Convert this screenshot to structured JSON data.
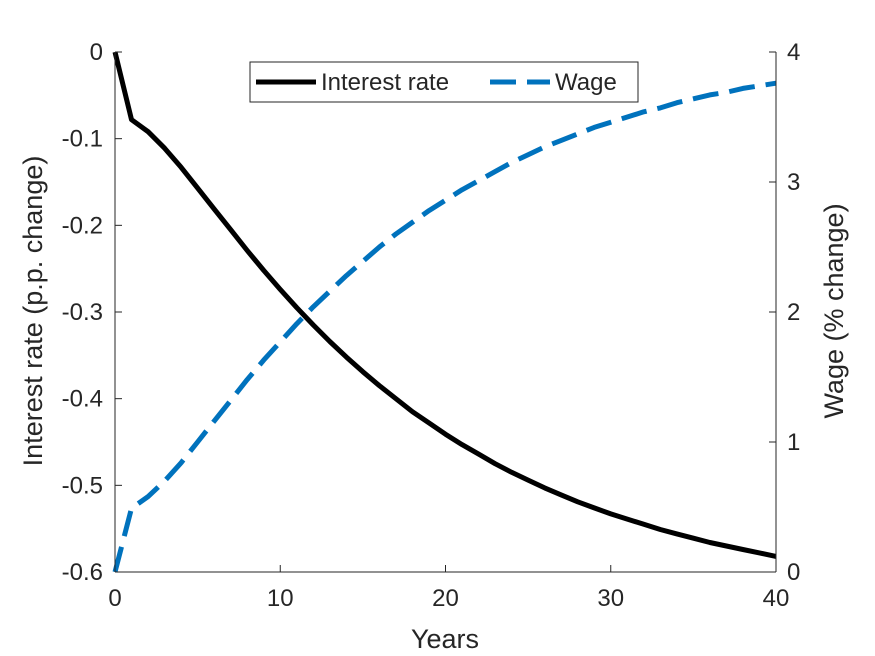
{
  "chart_data": {
    "type": "line",
    "title": "",
    "xlabel": "Years",
    "ylabel_left": "Interest rate (p.p. change)",
    "ylabel_right": "Wage (% change)",
    "xlim": [
      0,
      40
    ],
    "ylim_left": [
      -0.6,
      0
    ],
    "ylim_right": [
      0,
      4
    ],
    "x_ticks": [
      "0",
      "10",
      "20",
      "30",
      "40"
    ],
    "y_left_ticks": [
      "0",
      "-0.1",
      "-0.2",
      "-0.3",
      "-0.4",
      "-0.5",
      "-0.6"
    ],
    "y_right_ticks": [
      "4",
      "3",
      "2",
      "1",
      "0"
    ],
    "grid": false,
    "legend_position": "top-center",
    "series": [
      {
        "name": "Interest rate",
        "axis": "left",
        "color": "#000000",
        "style": "solid",
        "x": [
          0,
          1,
          2,
          3,
          4,
          5,
          6,
          7,
          8,
          9,
          10,
          11,
          12,
          13,
          14,
          15,
          16,
          17,
          18,
          19,
          20,
          21,
          22,
          23,
          24,
          25,
          26,
          27,
          28,
          29,
          30,
          31,
          32,
          33,
          34,
          35,
          36,
          37,
          38,
          39,
          40
        ],
        "values": [
          0,
          -0.078,
          -0.092,
          -0.111,
          -0.133,
          -0.157,
          -0.181,
          -0.205,
          -0.229,
          -0.252,
          -0.274,
          -0.295,
          -0.315,
          -0.334,
          -0.352,
          -0.369,
          -0.385,
          -0.4,
          -0.415,
          -0.428,
          -0.441,
          -0.453,
          -0.464,
          -0.475,
          -0.485,
          -0.494,
          -0.503,
          -0.511,
          -0.519,
          -0.526,
          -0.533,
          -0.539,
          -0.545,
          -0.551,
          -0.556,
          -0.561,
          -0.566,
          -0.57,
          -0.574,
          -0.578,
          -0.582
        ]
      },
      {
        "name": "Wage",
        "axis": "right",
        "color": "#0072BD",
        "style": "dashed",
        "x": [
          0,
          1,
          2,
          3,
          4,
          5,
          6,
          7,
          8,
          9,
          10,
          11,
          12,
          13,
          14,
          15,
          16,
          17,
          18,
          19,
          20,
          21,
          22,
          23,
          24,
          25,
          26,
          27,
          28,
          29,
          30,
          31,
          32,
          33,
          34,
          35,
          36,
          37,
          38,
          39,
          40
        ],
        "values": [
          0,
          0.49,
          0.58,
          0.7,
          0.84,
          1.0,
          1.16,
          1.32,
          1.48,
          1.63,
          1.77,
          1.91,
          2.04,
          2.16,
          2.28,
          2.39,
          2.5,
          2.6,
          2.69,
          2.78,
          2.86,
          2.94,
          3.01,
          3.08,
          3.15,
          3.21,
          3.27,
          3.32,
          3.37,
          3.42,
          3.46,
          3.5,
          3.54,
          3.57,
          3.61,
          3.64,
          3.67,
          3.69,
          3.72,
          3.74,
          3.76
        ]
      }
    ]
  }
}
